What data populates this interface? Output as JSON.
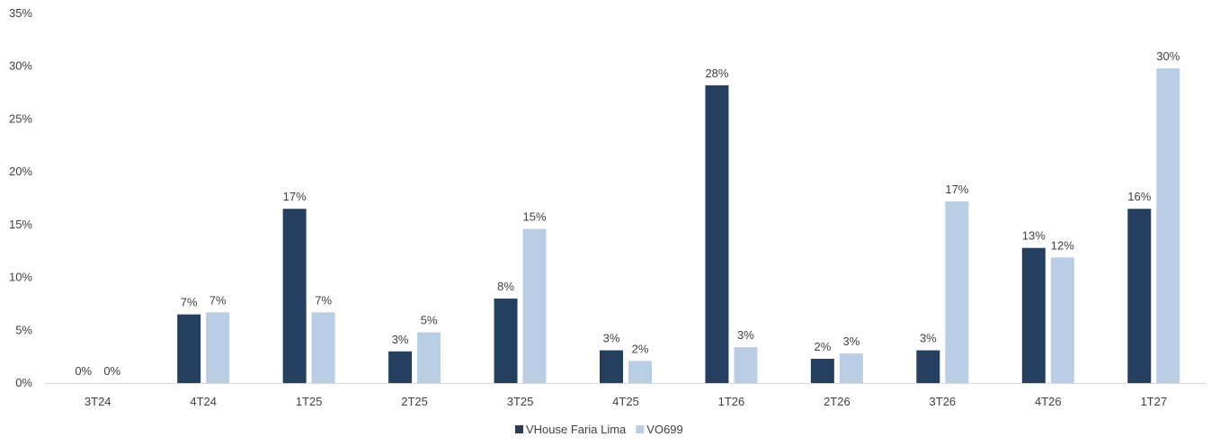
{
  "chart_data": {
    "type": "bar",
    "categories": [
      "3T24",
      "4T24",
      "1T25",
      "2T25",
      "3T25",
      "4T25",
      "1T26",
      "2T26",
      "3T26",
      "4T26",
      "1T27"
    ],
    "series": [
      {
        "name": "VHouse Faria Lima",
        "color": "#243f60",
        "values": [
          0,
          6.5,
          16.5,
          3.0,
          8.0,
          3.1,
          28.2,
          2.3,
          3.1,
          12.8,
          16.5
        ],
        "labels": [
          "0%",
          "7%",
          "17%",
          "3%",
          "8%",
          "3%",
          "28%",
          "2%",
          "3%",
          "13%",
          "16%"
        ]
      },
      {
        "name": "VO699",
        "color": "#b9cde5",
        "values": [
          0,
          6.7,
          6.7,
          4.8,
          14.6,
          2.1,
          3.4,
          2.8,
          17.2,
          11.9,
          29.8
        ],
        "labels": [
          "0%",
          "7%",
          "7%",
          "5%",
          "15%",
          "2%",
          "3%",
          "3%",
          "17%",
          "12%",
          "30%"
        ]
      }
    ],
    "y_ticks": [
      "0%",
      "5%",
      "10%",
      "15%",
      "20%",
      "25%",
      "30%",
      "35%"
    ],
    "y_tick_values": [
      0,
      5,
      10,
      15,
      20,
      25,
      30,
      35
    ],
    "ylim": [
      0,
      35
    ],
    "title": "",
    "xlabel": "",
    "ylabel": "",
    "grid": false,
    "legend_position": "bottom-center"
  }
}
